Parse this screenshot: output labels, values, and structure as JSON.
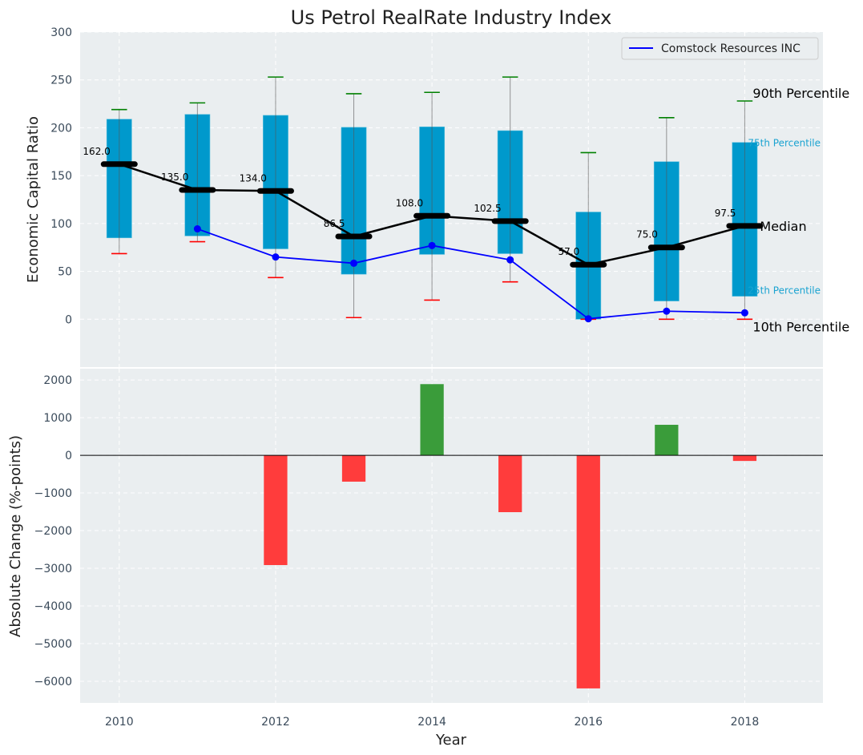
{
  "chart_data": [
    {
      "type": "box",
      "title": "Us Petrol RealRate Industry Index",
      "xlabel": "",
      "ylabel": "Economic Capital Ratio",
      "xlim": [
        2009.5,
        2019.0
      ],
      "ylim": [
        -50,
        300
      ],
      "yticks": [
        0,
        50,
        100,
        150,
        200,
        250,
        300
      ],
      "grid": true,
      "years": [
        2010,
        2011,
        2012,
        2013,
        2014,
        2015,
        2016,
        2017,
        2018
      ],
      "p10": [
        68.5,
        81,
        43.5,
        1.7,
        20,
        39,
        0,
        0,
        0
      ],
      "q25": [
        85,
        87,
        73.5,
        47,
        67.7,
        68.5,
        0,
        19,
        24
      ],
      "median": [
        162.0,
        135.0,
        134.0,
        86.5,
        108.0,
        102.5,
        57.0,
        75.0,
        97.5
      ],
      "median_labels": [
        "162.0",
        "135.0",
        "134.0",
        "86.5",
        "108.0",
        "102.5",
        "57.0",
        "75.0",
        "97.5"
      ],
      "q75": [
        209,
        214,
        213,
        200.5,
        201,
        197,
        112,
        164.6,
        184.7
      ],
      "p90": [
        219,
        226,
        253,
        235.6,
        237,
        253,
        174,
        210.6,
        228
      ],
      "series": [
        {
          "name": "Comstock Resources INC",
          "x": [
            2011,
            2012,
            2013,
            2014,
            2015,
            2016,
            2017,
            2018
          ],
          "values": [
            94.4,
            65,
            58.5,
            77,
            62,
            0.5,
            8.4,
            6.7
          ],
          "color": "#0000ff"
        }
      ],
      "legend": {
        "placement": "top-right",
        "entries": [
          "Comstock Resources INC"
        ]
      },
      "annotations": {
        "p90": "90th Percentile",
        "q75": "75th Percentile",
        "median": "Median",
        "q25": "25th Percentile",
        "p10": "10th Percentile"
      },
      "colors": {
        "box": "#0099cc",
        "median": "#000000",
        "p90_cap": "#008000",
        "p10_cap": "#ff0000",
        "background": "#eaeef0"
      }
    },
    {
      "type": "bar",
      "xlabel": "Year",
      "ylabel": "Absolute Change (%-points)",
      "xlim": [
        2009.5,
        2019.0
      ],
      "ylim": [
        -6575,
        2300
      ],
      "yticks": [
        -6000,
        -5000,
        -4000,
        -3000,
        -2000,
        -1000,
        0,
        1000,
        2000
      ],
      "xticks": [
        2010,
        2012,
        2014,
        2016,
        2018
      ],
      "categories": [
        2012,
        2013,
        2014,
        2015,
        2016,
        2017,
        2018
      ],
      "values": [
        -2915,
        -700,
        1890,
        -1510,
        -6190,
        810,
        -150
      ],
      "colors": {
        "positive": "#3a9c3a",
        "negative": "#ff3c3c"
      }
    }
  ]
}
